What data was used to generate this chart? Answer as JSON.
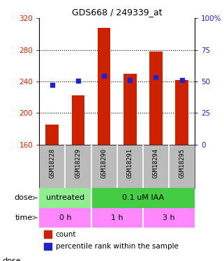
{
  "title": "GDS668 / 249339_at",
  "samples": [
    "GSM18228",
    "GSM18229",
    "GSM18290",
    "GSM18291",
    "GSM18294",
    "GSM18295"
  ],
  "bar_values": [
    185,
    222,
    308,
    250,
    278,
    242
  ],
  "bar_bottom": 160,
  "blue_values": [
    236,
    241,
    247,
    242,
    245,
    242
  ],
  "ylim_left": [
    160,
    320
  ],
  "ylim_right": [
    0,
    100
  ],
  "yticks_left": [
    160,
    200,
    240,
    280,
    320
  ],
  "yticks_right": [
    0,
    25,
    50,
    75,
    100
  ],
  "bar_color": "#cc2200",
  "blue_color": "#2222cc",
  "dose_untreated_color": "#90EE90",
  "dose_iaa_color": "#44cc44",
  "time_color": "#ff88ff",
  "sample_bg_color": "#bbbbbb",
  "dose_label": "dose",
  "time_label": "time",
  "legend_red": "count",
  "legend_blue": "percentile rank within the sample",
  "bg_color": "#ffffff",
  "ylabel_left_color": "#cc2200",
  "ylabel_right_color": "#2222cc"
}
